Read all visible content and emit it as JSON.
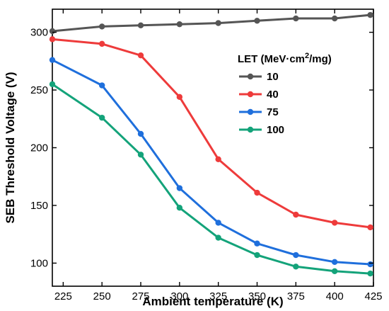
{
  "chart_data": {
    "type": "line",
    "xlabel": "Ambient temperature (K)",
    "ylabel": "SEB Threshold Voltage (V)",
    "xlim": [
      218,
      425
    ],
    "ylim": [
      80,
      320
    ],
    "xticks": [
      225,
      250,
      275,
      300,
      325,
      350,
      375,
      400,
      425
    ],
    "yticks": [
      100,
      150,
      200,
      250,
      300
    ],
    "x": [
      218,
      250,
      275,
      300,
      325,
      350,
      375,
      400,
      423
    ],
    "legend": {
      "title_prefix": "LET (MeV·cm",
      "title_sup": "2",
      "title_suffix": "/mg)",
      "placement": "right"
    },
    "series": [
      {
        "name": "10",
        "color": "#555555",
        "values": [
          301,
          305,
          306,
          307,
          308,
          310,
          312,
          312,
          315
        ]
      },
      {
        "name": "40",
        "color": "#ee3b3b",
        "values": [
          294,
          290,
          280,
          244,
          190,
          161,
          142,
          135,
          131
        ]
      },
      {
        "name": "75",
        "color": "#1f6fdc",
        "values": [
          276,
          254,
          212,
          165,
          135,
          117,
          107,
          101,
          99
        ]
      },
      {
        "name": "100",
        "color": "#14a37a",
        "values": [
          255,
          226,
          194,
          148,
          122,
          107,
          97,
          93,
          91
        ]
      }
    ]
  }
}
